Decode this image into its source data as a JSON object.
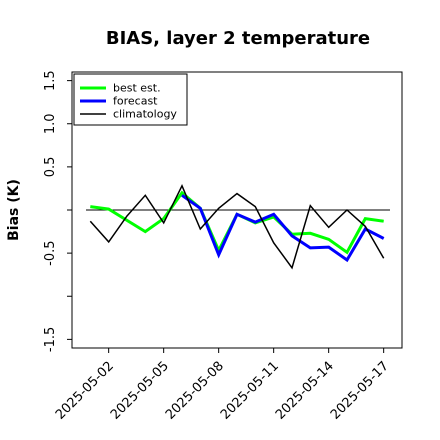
{
  "chart_data": {
    "type": "line",
    "title": "BIAS, layer 2 temperature",
    "xlabel": "",
    "ylabel": "Bias (K)",
    "ylim": [
      -1.6,
      1.6
    ],
    "yticks": [
      "-1.5",
      "-0.5",
      "0.5",
      "1.0",
      "1.5"
    ],
    "yticks_values": [
      -1.5,
      -0.5,
      0.5,
      1.0,
      1.5
    ],
    "unlabeled_yticks": [
      -1.0,
      0.0
    ],
    "xlim": [
      "2025-04-30",
      "2025-05-18"
    ],
    "xticks": [
      "2025-05-02",
      "2025-05-05",
      "2025-05-08",
      "2025-05-11",
      "2025-05-14",
      "2025-05-17"
    ],
    "highlight_xtick": "2025-05-08",
    "highlight_color": "#2e8b22",
    "reference_line": 0.0,
    "legend_position": "top-left",
    "x": [
      "2025-05-01",
      "2025-05-02",
      "2025-05-03",
      "2025-05-04",
      "2025-05-05",
      "2025-05-06",
      "2025-05-07",
      "2025-05-08",
      "2025-05-09",
      "2025-05-10",
      "2025-05-11",
      "2025-05-12",
      "2025-05-13",
      "2025-05-14",
      "2025-05-15",
      "2025-05-16",
      "2025-05-17"
    ],
    "series": [
      {
        "name": "best est.",
        "color": "#00ff00",
        "width": 3,
        "values": [
          0.04,
          0.01,
          -0.12,
          -0.25,
          -0.1,
          0.2,
          0.02,
          -0.47,
          -0.05,
          -0.15,
          -0.08,
          -0.28,
          -0.27,
          -0.34,
          -0.49,
          -0.1,
          -0.13
        ]
      },
      {
        "name": "forecast",
        "color": "#0000ff",
        "width": 3,
        "values": [
          null,
          null,
          null,
          null,
          null,
          0.17,
          0.02,
          -0.52,
          -0.05,
          -0.14,
          -0.05,
          -0.3,
          -0.44,
          -0.43,
          -0.58,
          -0.22,
          -0.33
        ]
      },
      {
        "name": "climatology",
        "color": "#000000",
        "width": 1.5,
        "values": [
          -0.13,
          -0.37,
          -0.07,
          0.17,
          -0.15,
          0.28,
          -0.22,
          0.02,
          0.19,
          0.04,
          -0.38,
          -0.67,
          0.05,
          -0.2,
          0.0,
          -0.19,
          -0.56
        ]
      }
    ]
  }
}
